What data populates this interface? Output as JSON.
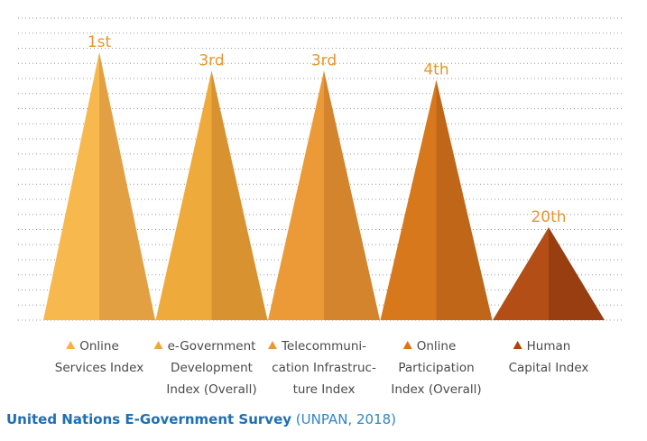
{
  "chart_data": {
    "type": "bar",
    "title": "",
    "xlabel": "",
    "ylabel": "",
    "ylim": [
      0,
      21
    ],
    "grid": true,
    "categories": [
      [
        "Online",
        "Services Index"
      ],
      [
        "e-Government",
        "Development",
        "Index (Overall)"
      ],
      [
        "Telecommuni-",
        "cation Infrastruc-",
        "ture Index"
      ],
      [
        "Online",
        "Participation",
        "Index (Overall)"
      ],
      [
        "Human",
        "Capital Index"
      ]
    ],
    "series": [
      {
        "values": [
          1,
          3,
          3,
          4,
          20
        ]
      }
    ],
    "rank_labels": [
      "1st",
      "3rd",
      "3rd",
      "4th",
      "20th"
    ],
    "colors": [
      {
        "left": "#f7b84e",
        "right": "#e2a042",
        "marker": "#f4b24a"
      },
      {
        "left": "#eeab3c",
        "right": "#d8922f",
        "marker": "#eba83c"
      },
      {
        "left": "#ec9a38",
        "right": "#d4842c",
        "marker": "#e9973a"
      },
      {
        "left": "#d8781c",
        "right": "#bf6618",
        "marker": "#d5761e"
      },
      {
        "left": "#b24e16",
        "right": "#983e10",
        "marker": "#a84612"
      }
    ],
    "legend_placement": "bottom",
    "legend_marker": "triangle"
  },
  "source": {
    "title": "United Nations E-Government Survey",
    "note": " (UNPAN, 2018)"
  }
}
